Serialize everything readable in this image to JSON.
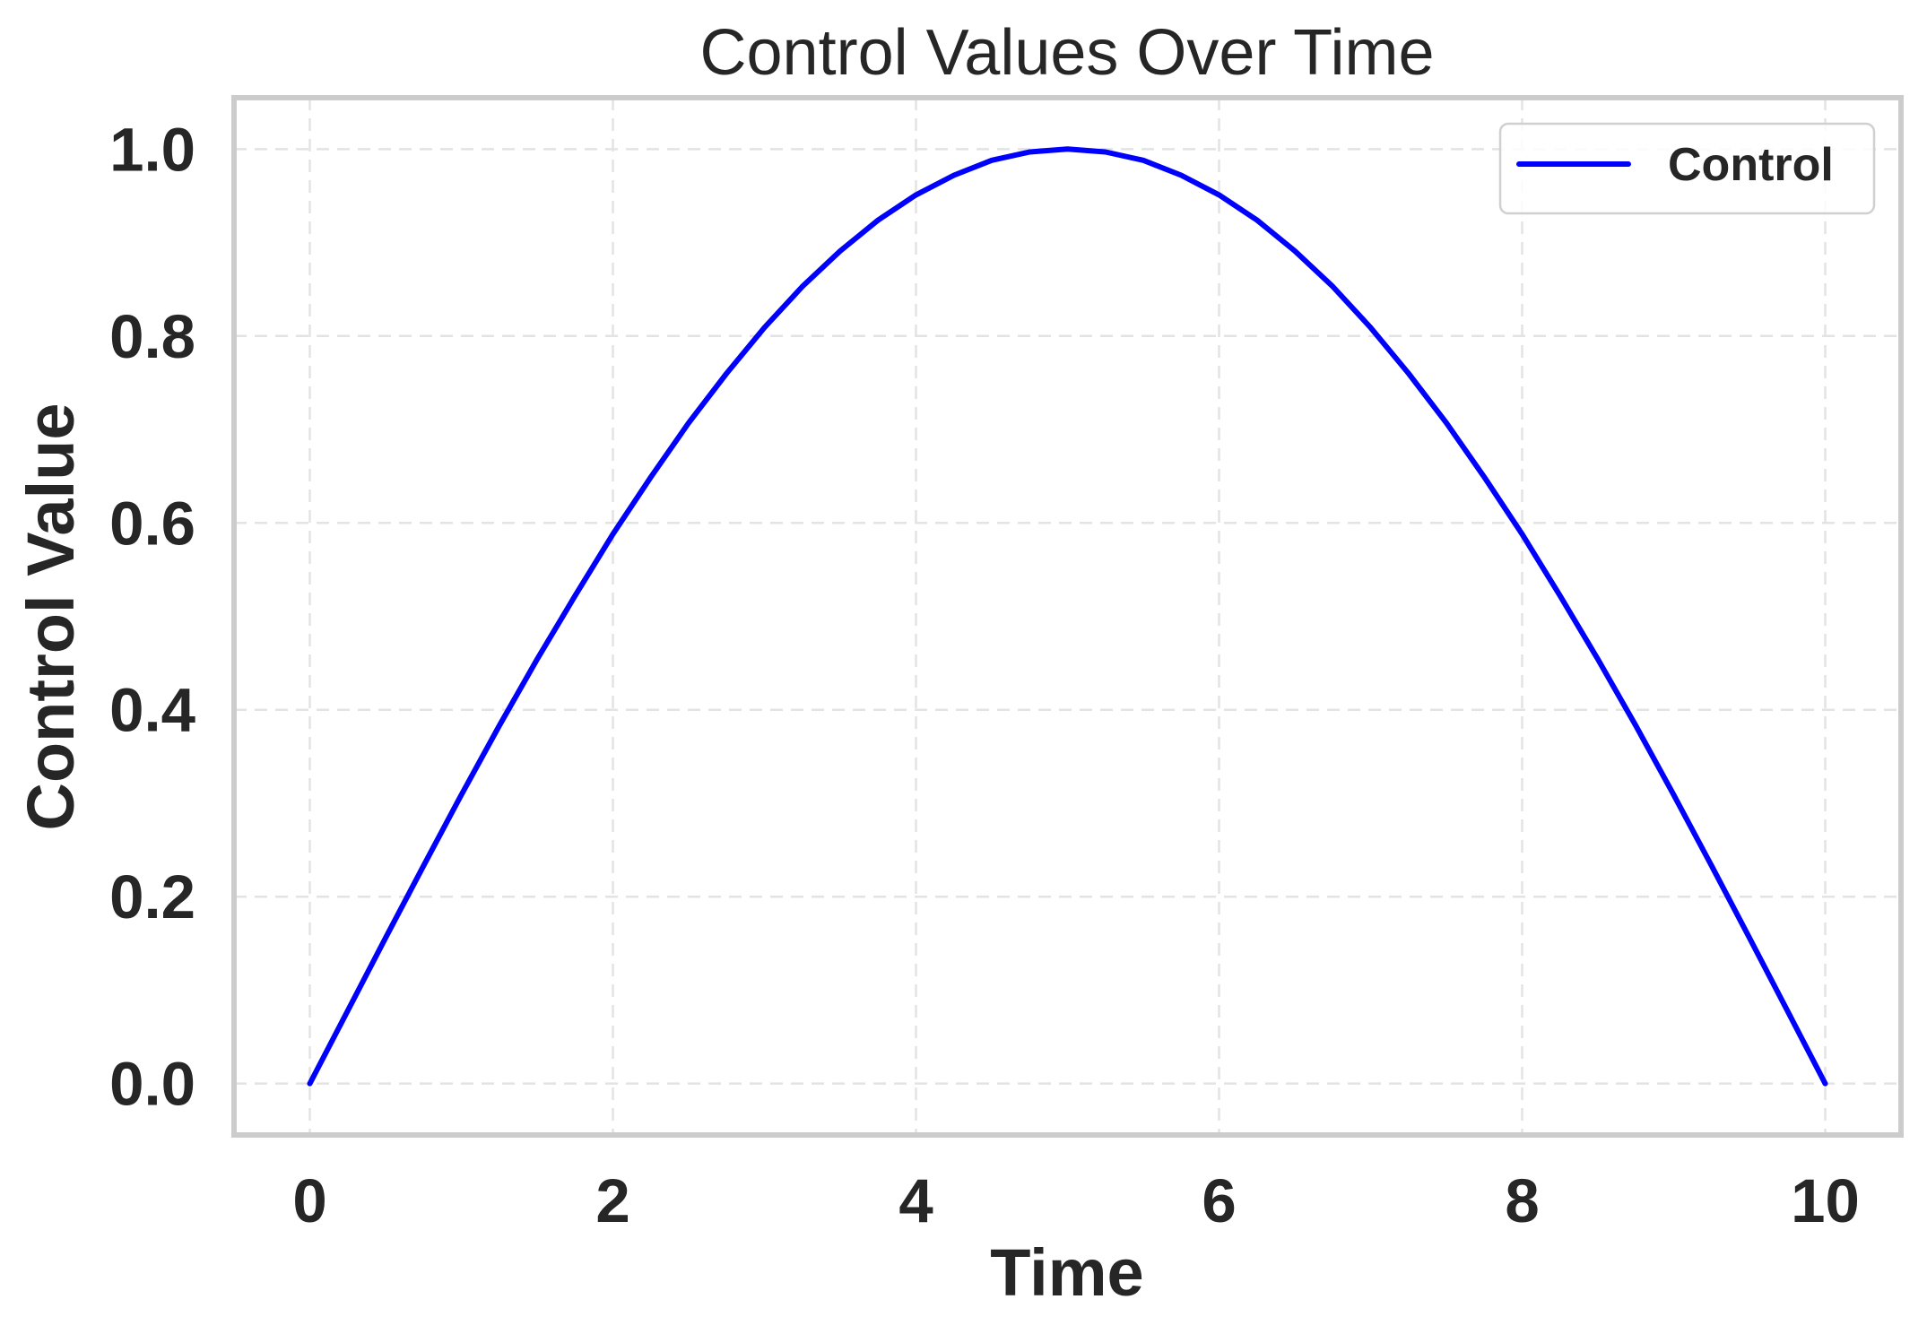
{
  "chart_data": {
    "type": "line",
    "title": "Control Values Over Time",
    "xlabel": "Time",
    "ylabel": "Control Value",
    "xlim": [
      -0.5,
      10.5
    ],
    "ylim": [
      -0.055,
      1.055
    ],
    "xticks": [
      0,
      2,
      4,
      6,
      8,
      10
    ],
    "xtick_labels": [
      "0",
      "2",
      "4",
      "6",
      "8",
      "10"
    ],
    "yticks": [
      0.0,
      0.2,
      0.4,
      0.6,
      0.8,
      1.0
    ],
    "ytick_labels": [
      "0.0",
      "0.2",
      "0.4",
      "0.6",
      "0.8",
      "1.0"
    ],
    "grid": true,
    "legend": {
      "placement": "top-right",
      "entries": [
        "Control"
      ]
    },
    "series": [
      {
        "name": "Control",
        "color": "#0000ff",
        "x": [
          0,
          0.25,
          0.5,
          0.75,
          1,
          1.25,
          1.5,
          1.75,
          2,
          2.25,
          2.5,
          2.75,
          3,
          3.25,
          3.5,
          3.75,
          4,
          4.25,
          4.5,
          4.75,
          5,
          5.25,
          5.5,
          5.75,
          6,
          6.25,
          6.5,
          6.75,
          7,
          7.25,
          7.5,
          7.75,
          8,
          8.25,
          8.5,
          8.75,
          9,
          9.25,
          9.5,
          9.75,
          10
        ],
        "y": [
          0,
          0.078,
          0.156,
          0.233,
          0.309,
          0.383,
          0.454,
          0.522,
          0.588,
          0.649,
          0.707,
          0.76,
          0.809,
          0.853,
          0.891,
          0.924,
          0.951,
          0.972,
          0.988,
          0.997,
          1.0,
          0.997,
          0.988,
          0.972,
          0.951,
          0.924,
          0.891,
          0.853,
          0.809,
          0.76,
          0.707,
          0.649,
          0.588,
          0.522,
          0.454,
          0.383,
          0.309,
          0.233,
          0.156,
          0.078,
          0
        ]
      }
    ]
  }
}
